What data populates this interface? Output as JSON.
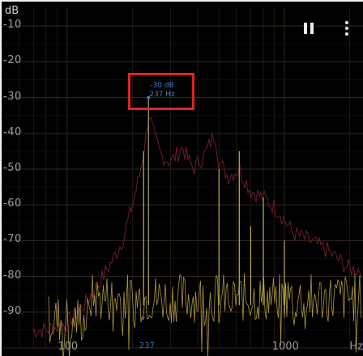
{
  "units": {
    "y": "dB",
    "x": "Hz"
  },
  "controls": {
    "pause_icon": "pause-icon",
    "menu_icon": "more-vert-icon"
  },
  "y_ticks": [
    "-10",
    "-20",
    "-30",
    "-40",
    "-50",
    "-60",
    "-70",
    "-80",
    "-90"
  ],
  "x_ticks": [
    {
      "label": "100",
      "value": 100
    },
    {
      "label": "237",
      "value": 237,
      "highlight": true
    },
    {
      "label": "1000",
      "value": 1000
    }
  ],
  "peak": {
    "level": "-30 dB",
    "freq": "237 Hz",
    "hz": 237,
    "db": -30
  },
  "colors": {
    "background": "#000000",
    "grid": "#3a2e22",
    "spectrum": "#c8b24a",
    "peak_hold": "#6b1e2a",
    "marker": "#3c7bd0",
    "highlight_box": "#e02424",
    "labels": "#9a9a9a"
  },
  "chart_data": {
    "type": "line",
    "title": "",
    "xlabel": "Hz",
    "ylabel": "dB",
    "x_scale": "log",
    "xlim": [
      50,
      2300
    ],
    "ylim": [
      -100,
      -5
    ],
    "series": [
      {
        "x": [
          50,
          80,
          120,
          160,
          200,
          225,
          237,
          260,
          300,
          380,
          500,
          600,
          620,
          700,
          800,
          1000,
          1200,
          1500,
          2000
        ],
        "y": [
          -98,
          -96,
          -88,
          -78,
          -62,
          -45,
          -30,
          -42,
          -55,
          -60,
          -50,
          -68,
          -45,
          -65,
          -58,
          -70,
          -66,
          -72,
          -75
        ]
      },
      {
        "x": [
          80,
          100,
          120,
          140,
          160,
          180,
          200,
          215,
          225,
          232,
          237,
          245,
          255,
          270,
          300,
          340,
          380,
          430,
          480,
          500,
          550,
          620,
          700,
          800,
          950,
          1100,
          1300,
          1600,
          2000
        ],
        "y": [
          -95,
          -93,
          -88,
          -82,
          -76,
          -70,
          -60,
          -52,
          -45,
          -40,
          -34,
          -38,
          -42,
          -46,
          -48,
          -44,
          -50,
          -46,
          -40,
          -48,
          -52,
          -50,
          -56,
          -58,
          -62,
          -68,
          -70,
          -73,
          -78
        ]
      }
    ],
    "annotations": [
      {
        "text": "-30 dB 237 Hz"
      }
    ],
    "grid": true
  }
}
